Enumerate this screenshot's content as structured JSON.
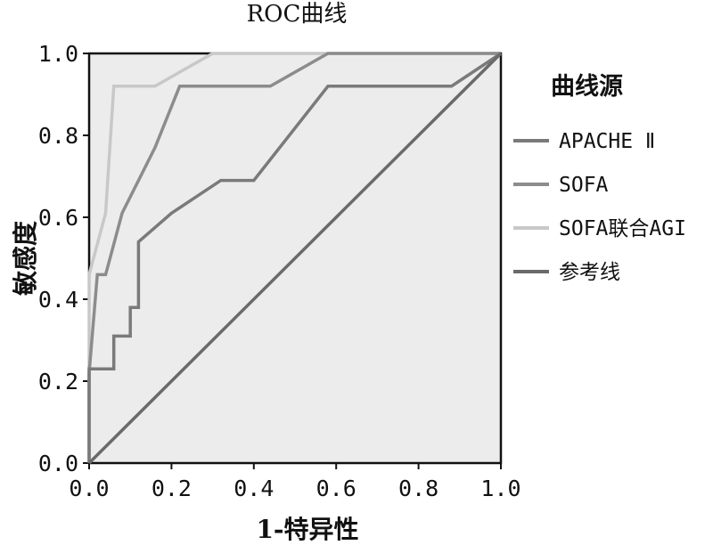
{
  "chart_data": {
    "type": "line",
    "title": "ROC曲线",
    "xlabel": "1-特异性",
    "ylabel": "敏感度",
    "xlim": [
      0,
      1
    ],
    "ylim": [
      0,
      1
    ],
    "xticks": [
      "0.0",
      "0.2",
      "0.4",
      "0.6",
      "0.8",
      "1.0"
    ],
    "yticks": [
      "0.0",
      "0.2",
      "0.4",
      "0.6",
      "0.8",
      "1.0"
    ],
    "grid": false,
    "legend_title": "曲线源",
    "legend_position": "right",
    "series": [
      {
        "name": "APACHE Ⅱ",
        "color": "#7a7a7a",
        "x": [
          0.0,
          0.0,
          0.02,
          0.06,
          0.06,
          0.1,
          0.1,
          0.12,
          0.12,
          0.2,
          0.32,
          0.4,
          0.58,
          0.88,
          1.0
        ],
        "y": [
          0.0,
          0.23,
          0.23,
          0.23,
          0.31,
          0.31,
          0.38,
          0.38,
          0.54,
          0.61,
          0.69,
          0.69,
          0.92,
          0.92,
          1.0
        ]
      },
      {
        "name": "SOFA",
        "color": "#8c8c8c",
        "x": [
          0.0,
          0.0,
          0.02,
          0.04,
          0.08,
          0.16,
          0.22,
          0.34,
          0.44,
          0.58,
          1.0
        ],
        "y": [
          0.0,
          0.22,
          0.46,
          0.46,
          0.61,
          0.77,
          0.92,
          0.92,
          0.92,
          1.0,
          1.0
        ]
      },
      {
        "name": "SOFA联合AGI",
        "color": "#c8c8c8",
        "x": [
          0.0,
          0.0,
          0.04,
          0.06,
          0.16,
          0.3,
          1.0
        ],
        "y": [
          0.0,
          0.46,
          0.61,
          0.92,
          0.92,
          1.0,
          1.0
        ]
      },
      {
        "name": "参考线",
        "color": "#6a6a6a",
        "x": [
          0.0,
          1.0
        ],
        "y": [
          0.0,
          1.0
        ]
      }
    ]
  }
}
